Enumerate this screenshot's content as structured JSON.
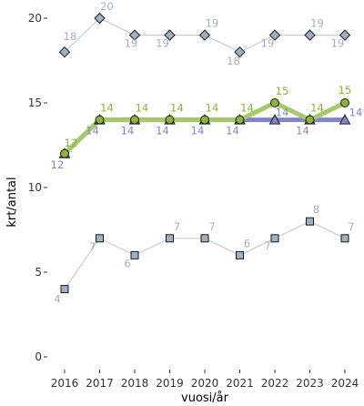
{
  "chart_data": {
    "type": "line",
    "title": "",
    "xlabel": "vuosi/år",
    "ylabel": "krt/antal",
    "x": [
      2016,
      2017,
      2018,
      2019,
      2020,
      2021,
      2022,
      2023,
      2024
    ],
    "ylim": [
      0,
      21.5
    ],
    "yticks": [
      0,
      5,
      10,
      15,
      20
    ],
    "grid": false,
    "legend": "none",
    "series": [
      {
        "values": [
          18,
          20,
          19,
          19,
          19,
          18,
          19,
          19,
          19
        ],
        "marker": "diamond",
        "line_color": "#c3cdd6",
        "marker_fill": "#9fb0c1",
        "label_color": "#9fb0c1"
      },
      {
        "values": [
          4,
          7,
          6,
          7,
          7,
          6,
          7,
          8,
          7
        ],
        "marker": "square",
        "line_color": "#c3cdd6",
        "marker_fill": "#9fb0c1",
        "label_color": "#9fb0c1"
      },
      {
        "values": [
          12,
          14,
          14,
          14,
          14,
          14,
          14,
          14,
          14
        ],
        "marker": "triangle",
        "line_color": "#7f86c9",
        "marker_fill": "#7f86c9",
        "label_color": "#7f86c9"
      },
      {
        "values": [
          12,
          14,
          14,
          14,
          14,
          14,
          15,
          14,
          15
        ],
        "marker": "circle",
        "line_color": "#a6c96a",
        "marker_fill": "#8db33a",
        "label_color": "#8db33a"
      }
    ]
  }
}
